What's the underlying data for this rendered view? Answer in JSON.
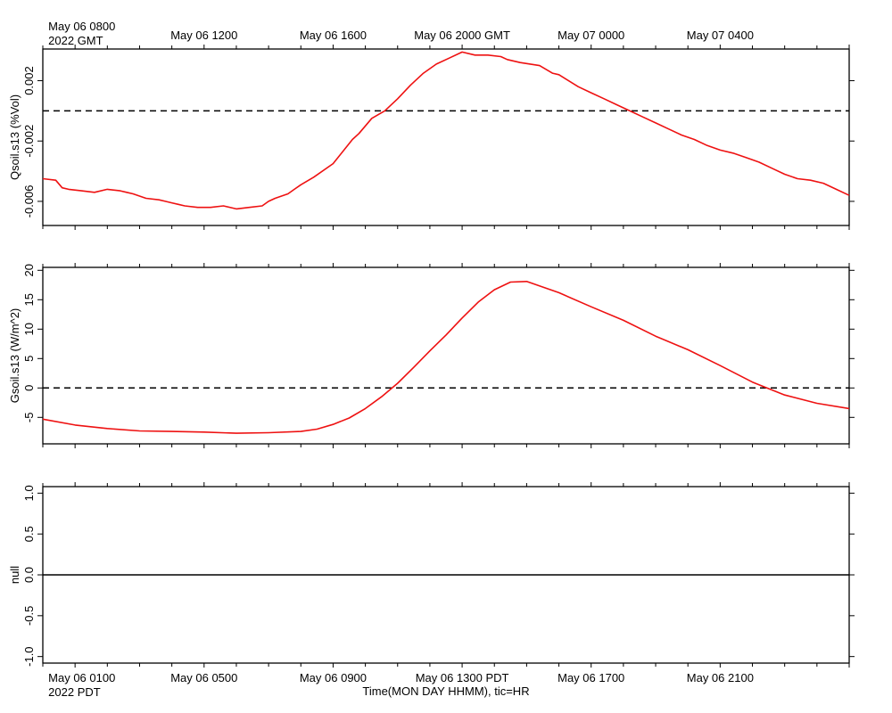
{
  "chart_data": [
    {
      "type": "line",
      "ylabel": "Qsoil.s13 (%Vol)",
      "ylim": [
        -0.0076,
        0.0041
      ],
      "yticks": [
        -0.006,
        -0.002,
        0.002
      ],
      "ytick_labels": [
        "-0.006",
        "-0.002",
        "0.002"
      ],
      "reference_line": {
        "y": 0,
        "style": "dashed"
      },
      "series": [
        {
          "color": "#ee1111",
          "x": [
            -1.0,
            -0.6,
            -0.4,
            -0.2,
            0.2,
            0.6,
            1.0,
            1.4,
            1.6,
            1.8,
            2.2,
            2.6,
            2.8,
            3.0,
            3.2,
            3.4,
            3.8,
            4.2,
            4.6,
            5.0,
            5.4,
            5.8,
            6.0,
            6.2,
            6.6,
            6.8,
            7.0,
            7.4,
            8.0,
            8.6,
            8.8,
            9.0,
            9.2,
            9.6,
            10.0,
            10.4,
            10.8,
            11.2,
            11.6,
            12.0,
            12.4,
            12.8,
            13.2,
            13.4,
            13.8,
            14.4,
            14.8,
            15.0,
            15.6,
            16.0,
            16.4,
            16.8,
            17.2,
            17.6,
            18.0,
            18.4,
            18.8,
            19.2,
            19.6,
            20.0,
            20.4,
            20.8,
            21.2,
            21.6,
            22.0,
            22.4,
            22.8,
            23.2,
            23.6,
            24.0
          ],
          "y": [
            -0.0045,
            -0.0046,
            -0.0051,
            -0.0052,
            -0.0053,
            -0.0054,
            -0.0052,
            -0.0053,
            -0.0054,
            -0.0055,
            -0.0058,
            -0.0059,
            -0.006,
            -0.0061,
            -0.0062,
            -0.0063,
            -0.0064,
            -0.0064,
            -0.0063,
            -0.0065,
            -0.0064,
            -0.0063,
            -0.006,
            -0.0058,
            -0.0055,
            -0.0052,
            -0.0049,
            -0.0044,
            -0.0035,
            -0.0019,
            -0.0015,
            -0.001,
            -0.0005,
            0.0,
            0.0008,
            0.0017,
            0.0025,
            0.0031,
            0.0035,
            0.0039,
            0.0037,
            0.0037,
            0.0036,
            0.0034,
            0.0032,
            0.003,
            0.0025,
            0.0024,
            0.0016,
            0.0012,
            0.0008,
            0.0004,
            0.0,
            -0.0004,
            -0.0008,
            -0.0012,
            -0.0016,
            -0.0019,
            -0.0023,
            -0.0026,
            -0.0028,
            -0.0031,
            -0.0034,
            -0.0038,
            -0.0042,
            -0.0045,
            -0.0046,
            -0.0048,
            -0.0052,
            -0.0056
          ]
        }
      ]
    },
    {
      "type": "line",
      "ylabel": "Gsoil.s13 (W/m^2)",
      "ylim": [
        -9.5,
        20.5
      ],
      "yticks": [
        -5,
        0,
        5,
        10,
        15,
        20
      ],
      "ytick_labels": [
        "-5",
        "0",
        "5",
        "10",
        "15",
        "20"
      ],
      "reference_line": {
        "y": 0,
        "style": "dashed"
      },
      "series": [
        {
          "color": "#ee1111",
          "x": [
            -1.0,
            0.0,
            1.0,
            2.0,
            3.0,
            4.0,
            5.0,
            6.0,
            7.0,
            7.5,
            8.0,
            8.5,
            9.0,
            9.5,
            10.0,
            10.5,
            11.0,
            11.5,
            12.0,
            12.5,
            13.0,
            13.5,
            14.0,
            15.0,
            16.0,
            17.0,
            18.0,
            19.0,
            20.0,
            21.0,
            21.5,
            22.0,
            23.0,
            24.0
          ],
          "y": [
            -5.3,
            -6.3,
            -6.9,
            -7.3,
            -7.4,
            -7.5,
            -7.7,
            -7.6,
            -7.4,
            -7.0,
            -6.2,
            -5.1,
            -3.5,
            -1.5,
            0.8,
            3.5,
            6.3,
            9.0,
            11.9,
            14.6,
            16.7,
            18.0,
            18.1,
            16.2,
            13.8,
            11.5,
            8.8,
            6.5,
            3.8,
            1.0,
            -0.1,
            -1.2,
            -2.6,
            -3.5
          ]
        }
      ]
    },
    {
      "type": "line",
      "ylabel": "null",
      "ylim": [
        -1.08,
        1.08
      ],
      "yticks": [
        -1.0,
        -0.5,
        0.0,
        0.5,
        1.0
      ],
      "ytick_labels": [
        "-1.0",
        "-0.5",
        "0.0",
        "0.5",
        "1.0"
      ],
      "reference_line": {
        "y": 0,
        "style": "solid"
      },
      "series": []
    }
  ],
  "x_axis": {
    "range_hours": [
      -1.0,
      24.0
    ],
    "top_ticks": [
      {
        "x": 0,
        "line1": "May 06 0800",
        "line2": "2022 GMT"
      },
      {
        "x": 4,
        "line1": "May 06 1200"
      },
      {
        "x": 8,
        "line1": "May 06 1600"
      },
      {
        "x": 12,
        "line1": "May 06 2000 GMT"
      },
      {
        "x": 16,
        "line1": "May 07 0000"
      },
      {
        "x": 20,
        "line1": "May 07 0400"
      }
    ],
    "bottom_ticks": [
      {
        "x": 0,
        "line1": "May 06 0100",
        "line2": "2022 PDT"
      },
      {
        "x": 4,
        "line1": "May 06 0500"
      },
      {
        "x": 8,
        "line1": "May 06 0900"
      },
      {
        "x": 12,
        "line1": "May 06 1300 PDT"
      },
      {
        "x": 16,
        "line1": "May 06 1700"
      },
      {
        "x": 20,
        "line1": "May 06 2100"
      }
    ],
    "xlabel": "Time(MON DAY HHMM), tic=HR"
  }
}
